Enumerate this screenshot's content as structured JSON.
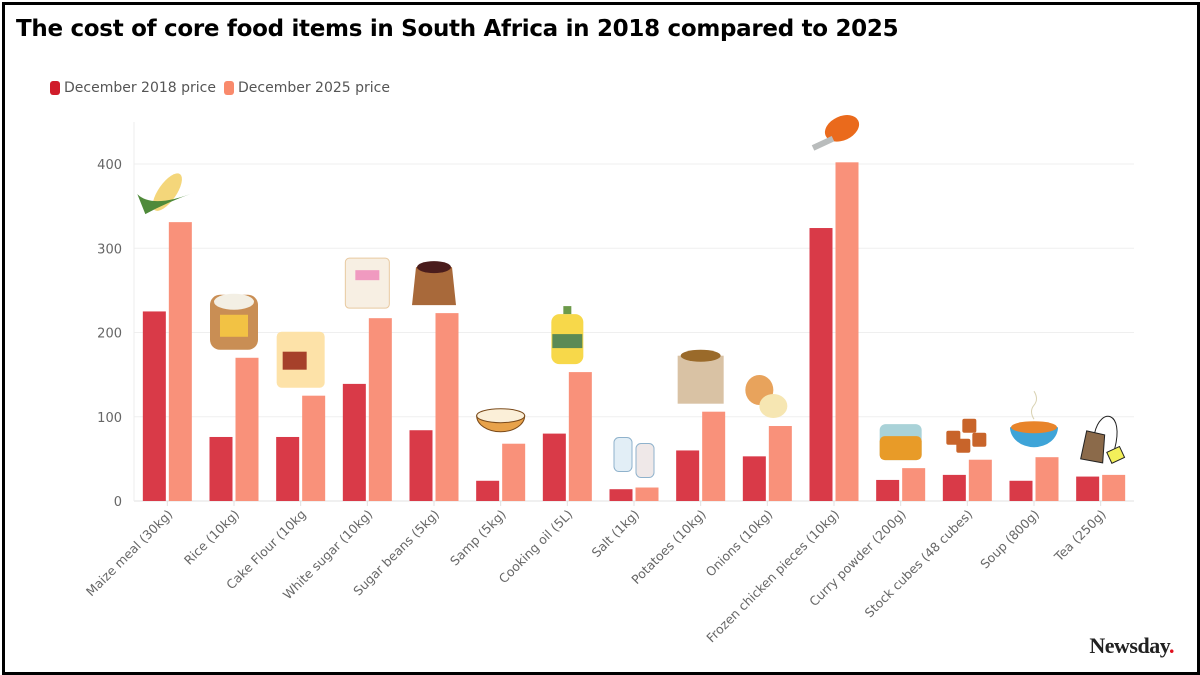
{
  "title": "The cost of core food items in South Africa in 2018 compared to 2025",
  "logo": {
    "text": "Newsday",
    "dot": "."
  },
  "colors": {
    "series2018": "#d93a48",
    "series2025": "#f9917a",
    "grid": "#ececec",
    "logo_dot": "#e0101e"
  },
  "chart_data": {
    "type": "bar",
    "title": "The cost of core food items in South Africa in 2018 compared to 2025",
    "xlabel": "",
    "ylabel": "",
    "ylim": [
      0,
      450
    ],
    "yticks": [
      0,
      100,
      200,
      300,
      400
    ],
    "grid": true,
    "legend_position": "top-left",
    "categories": [
      "Maize meal (30kg)",
      "Rice (10kg)",
      "Cake Flour (10kg",
      "White sugar (10kg)",
      "Sugar beans (5kg)",
      "Samp (5kg)",
      "Cooking oil (5L)",
      "Salt (1kg)",
      "Potatoes (10kg)",
      "Onions (10kg)",
      "Frozen chicken pieces (10kg)",
      "Curry powder (200g)",
      "Stock cubes (48 cubes)",
      "Soup (800g)",
      "Tea (250g)"
    ],
    "icons": [
      "corn-icon",
      "rice-sack-icon",
      "flour-bag-icon",
      "sugar-bag-icon",
      "beans-sack-icon",
      "samp-bowl-icon",
      "cooking-oil-bottle-icon",
      "salt-shakers-icon",
      "potato-sack-icon",
      "onion-icon",
      "chicken-drumstick-icon",
      "curry-jar-icon",
      "stock-cubes-icon",
      "soup-bowl-icon",
      "tea-bag-icon"
    ],
    "series": [
      {
        "name": "December 2018 price",
        "values": [
          225,
          76,
          76,
          139,
          84,
          24,
          80,
          14,
          60,
          53,
          324,
          25,
          31,
          24,
          29
        ]
      },
      {
        "name": "December 2025 price",
        "values": [
          331,
          170,
          125,
          217,
          223,
          68,
          153,
          16,
          106,
          89,
          402,
          39,
          49,
          52,
          31
        ]
      }
    ]
  }
}
